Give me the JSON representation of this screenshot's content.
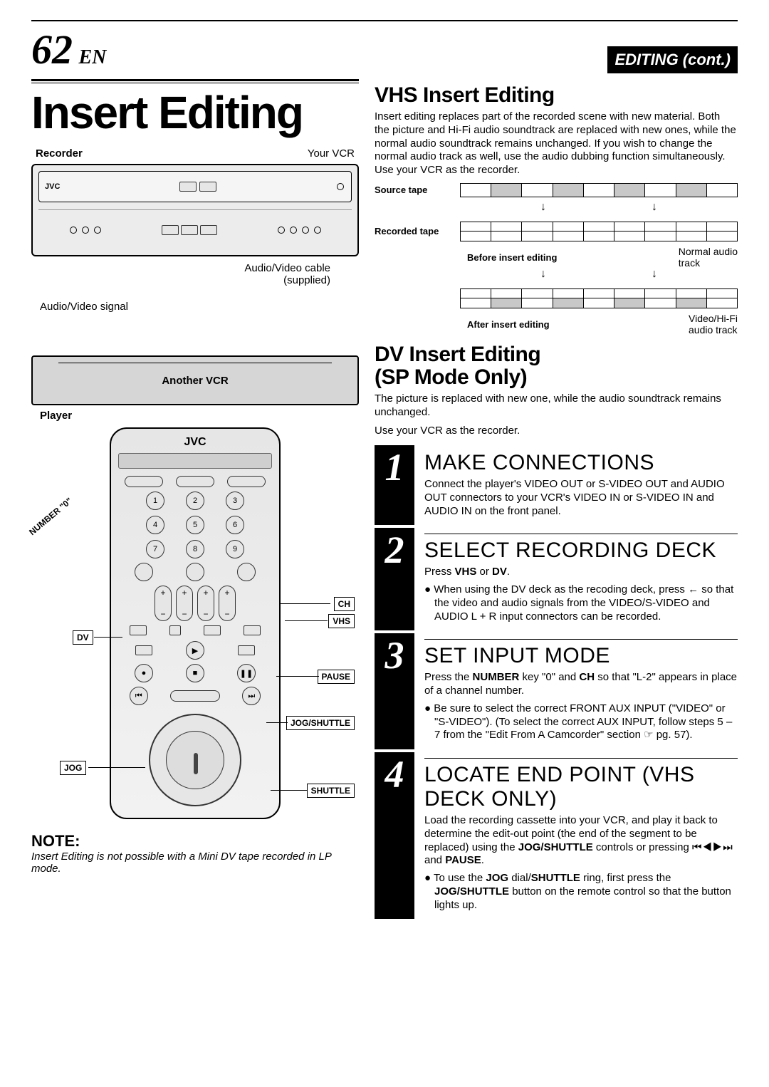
{
  "page": {
    "number": "62",
    "lang": "EN",
    "tab": "EDITING (cont.)",
    "background": "#ffffff"
  },
  "left": {
    "main_title": "Insert Editing",
    "recorder_label": "Recorder",
    "your_vcr_label": "Your VCR",
    "cable_label": "Audio/Video cable\n(supplied)",
    "av_signal_label": "Audio/Video signal",
    "another_vcr_label": "Another VCR",
    "player_label": "Player",
    "remote": {
      "brand": "JVC",
      "numbers": [
        "1",
        "2",
        "3",
        "4",
        "5",
        "6",
        "7",
        "8",
        "9"
      ],
      "number_callout": "NUMBER \"0\"",
      "callouts": {
        "ch": "CH",
        "vhs": "VHS",
        "dv": "DV",
        "pause": "PAUSE",
        "jog_shuttle": "JOG/SHUTTLE",
        "jog": "JOG",
        "shuttle": "SHUTTLE"
      }
    },
    "note_title": "NOTE:",
    "note_text": "Insert Editing is not possible with a Mini DV tape recorded in LP mode."
  },
  "right": {
    "vhs_head": "VHS Insert Editing",
    "vhs_body": "Insert editing replaces part of the recorded scene with new material. Both the picture and Hi-Fi audio soundtrack are replaced with new ones, while the normal audio soundtrack remains unchanged. If you wish to change the normal audio track as well, use the audio dubbing function simultaneously. Use your VCR as the recorder.",
    "timeline": {
      "source_label": "Source tape",
      "recorded_label": "Recorded tape",
      "before_caption": "Before insert editing",
      "after_caption": "After insert editing",
      "normal_audio": "Normal audio track",
      "video_audio": "Video/Hi-Fi audio track",
      "shaded_color": "#c8c8c8"
    },
    "dv_head1": "DV Insert Editing",
    "dv_head2": "(SP Mode Only)",
    "dv_body1": "The picture is replaced with new one, while the audio soundtrack remains unchanged.",
    "dv_body2": "Use your VCR  as the recorder.",
    "steps": [
      {
        "num": "1",
        "title": "MAKE CONNECTIONS",
        "body": "Connect the player's VIDEO OUT or S-VIDEO OUT and AUDIO OUT connectors to your VCR's VIDEO IN or S-VIDEO IN and AUDIO IN on the front panel.",
        "bullets": []
      },
      {
        "num": "2",
        "title": "SELECT RECORDING DECK",
        "body": "Press VHS or DV.",
        "bullets": [
          "When using the DV deck as the recoding deck, press ← so that the video and audio signals from the VIDEO/S-VIDEO and AUDIO L + R input connectors can be recorded."
        ]
      },
      {
        "num": "3",
        "title": "SET INPUT MODE",
        "body": "Press the NUMBER key \"0\" and CH so that \"L-2\" appears in place of a channel number.",
        "bullets": [
          "Be sure to select the correct FRONT AUX INPUT (\"VIDEO\" or \"S-VIDEO\"). (To select the correct AUX INPUT, follow steps 5 – 7 from the \"Edit From A Camcorder\" section ☞ pg. 57)."
        ]
      },
      {
        "num": "4",
        "title": "LOCATE END POINT (VHS DECK ONLY)",
        "body": "Load the recording cassette into your VCR, and play it back to determine the edit-out point (the end of the segment to be replaced) using the JOG/SHUTTLE controls or pressing ⏮◀▶⏭ and PAUSE.",
        "bullets": [
          "To use the JOG dial/SHUTTLE ring, first press the JOG/SHUTTLE button on the remote control so that the button lights up."
        ]
      }
    ]
  }
}
